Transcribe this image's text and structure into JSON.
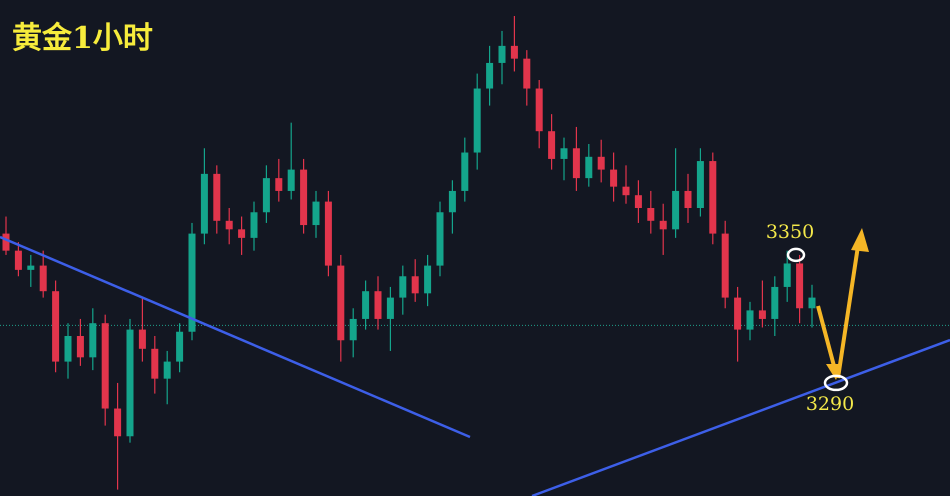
{
  "chart_data": {
    "type": "candlestick",
    "title": "黄金1小时",
    "ylim": [
      3237,
      3469.5
    ],
    "up_color": "#14a58c",
    "down_color": "#e2354c",
    "current_price": 3317,
    "annotations": [
      3350,
      3290
    ],
    "ohlc": [
      [
        3360,
        3368,
        3350,
        3352
      ],
      [
        3352,
        3356,
        3340,
        3343
      ],
      [
        3343,
        3350,
        3335,
        3345
      ],
      [
        3345,
        3352,
        3330,
        3333
      ],
      [
        3333,
        3338,
        3295,
        3300
      ],
      [
        3300,
        3318,
        3292,
        3312
      ],
      [
        3312,
        3320,
        3298,
        3302
      ],
      [
        3302,
        3325,
        3296,
        3318
      ],
      [
        3318,
        3322,
        3270,
        3278
      ],
      [
        3278,
        3290,
        3240,
        3265
      ],
      [
        3265,
        3320,
        3262,
        3315
      ],
      [
        3315,
        3330,
        3300,
        3306
      ],
      [
        3306,
        3312,
        3285,
        3292
      ],
      [
        3292,
        3305,
        3280,
        3300
      ],
      [
        3300,
        3318,
        3295,
        3314
      ],
      [
        3314,
        3365,
        3310,
        3360
      ],
      [
        3360,
        3400,
        3355,
        3388
      ],
      [
        3388,
        3392,
        3360,
        3366
      ],
      [
        3366,
        3372,
        3355,
        3362
      ],
      [
        3362,
        3368,
        3350,
        3358
      ],
      [
        3358,
        3375,
        3352,
        3370
      ],
      [
        3370,
        3392,
        3365,
        3386
      ],
      [
        3386,
        3395,
        3375,
        3380
      ],
      [
        3380,
        3412,
        3376,
        3390
      ],
      [
        3390,
        3395,
        3360,
        3364
      ],
      [
        3364,
        3380,
        3358,
        3375
      ],
      [
        3375,
        3380,
        3340,
        3345
      ],
      [
        3345,
        3350,
        3300,
        3310
      ],
      [
        3310,
        3325,
        3302,
        3320
      ],
      [
        3320,
        3338,
        3315,
        3333
      ],
      [
        3333,
        3340,
        3315,
        3320
      ],
      [
        3320,
        3335,
        3305,
        3330
      ],
      [
        3330,
        3345,
        3322,
        3340
      ],
      [
        3340,
        3348,
        3328,
        3332
      ],
      [
        3332,
        3350,
        3326,
        3345
      ],
      [
        3345,
        3375,
        3340,
        3370
      ],
      [
        3370,
        3385,
        3360,
        3380
      ],
      [
        3380,
        3405,
        3375,
        3398
      ],
      [
        3398,
        3435,
        3390,
        3428
      ],
      [
        3428,
        3448,
        3420,
        3440
      ],
      [
        3440,
        3455,
        3430,
        3448
      ],
      [
        3448,
        3462,
        3436,
        3442
      ],
      [
        3442,
        3446,
        3420,
        3428
      ],
      [
        3428,
        3432,
        3400,
        3408
      ],
      [
        3408,
        3416,
        3390,
        3395
      ],
      [
        3395,
        3405,
        3385,
        3400
      ],
      [
        3400,
        3410,
        3380,
        3386
      ],
      [
        3386,
        3402,
        3382,
        3396
      ],
      [
        3396,
        3404,
        3384,
        3390
      ],
      [
        3390,
        3398,
        3375,
        3382
      ],
      [
        3382,
        3392,
        3374,
        3378
      ],
      [
        3378,
        3385,
        3365,
        3372
      ],
      [
        3372,
        3380,
        3360,
        3366
      ],
      [
        3366,
        3374,
        3350,
        3362
      ],
      [
        3362,
        3400,
        3358,
        3380
      ],
      [
        3380,
        3388,
        3365,
        3372
      ],
      [
        3372,
        3400,
        3368,
        3394
      ],
      [
        3394,
        3398,
        3355,
        3360
      ],
      [
        3360,
        3366,
        3325,
        3330
      ],
      [
        3330,
        3335,
        3300,
        3315
      ],
      [
        3315,
        3328,
        3310,
        3324
      ],
      [
        3324,
        3338,
        3316,
        3320
      ],
      [
        3320,
        3340,
        3312,
        3335
      ],
      [
        3335,
        3352,
        3328,
        3346
      ],
      [
        3346,
        3350,
        3318,
        3325
      ],
      [
        3325,
        3336,
        3316,
        3330
      ]
    ]
  }
}
